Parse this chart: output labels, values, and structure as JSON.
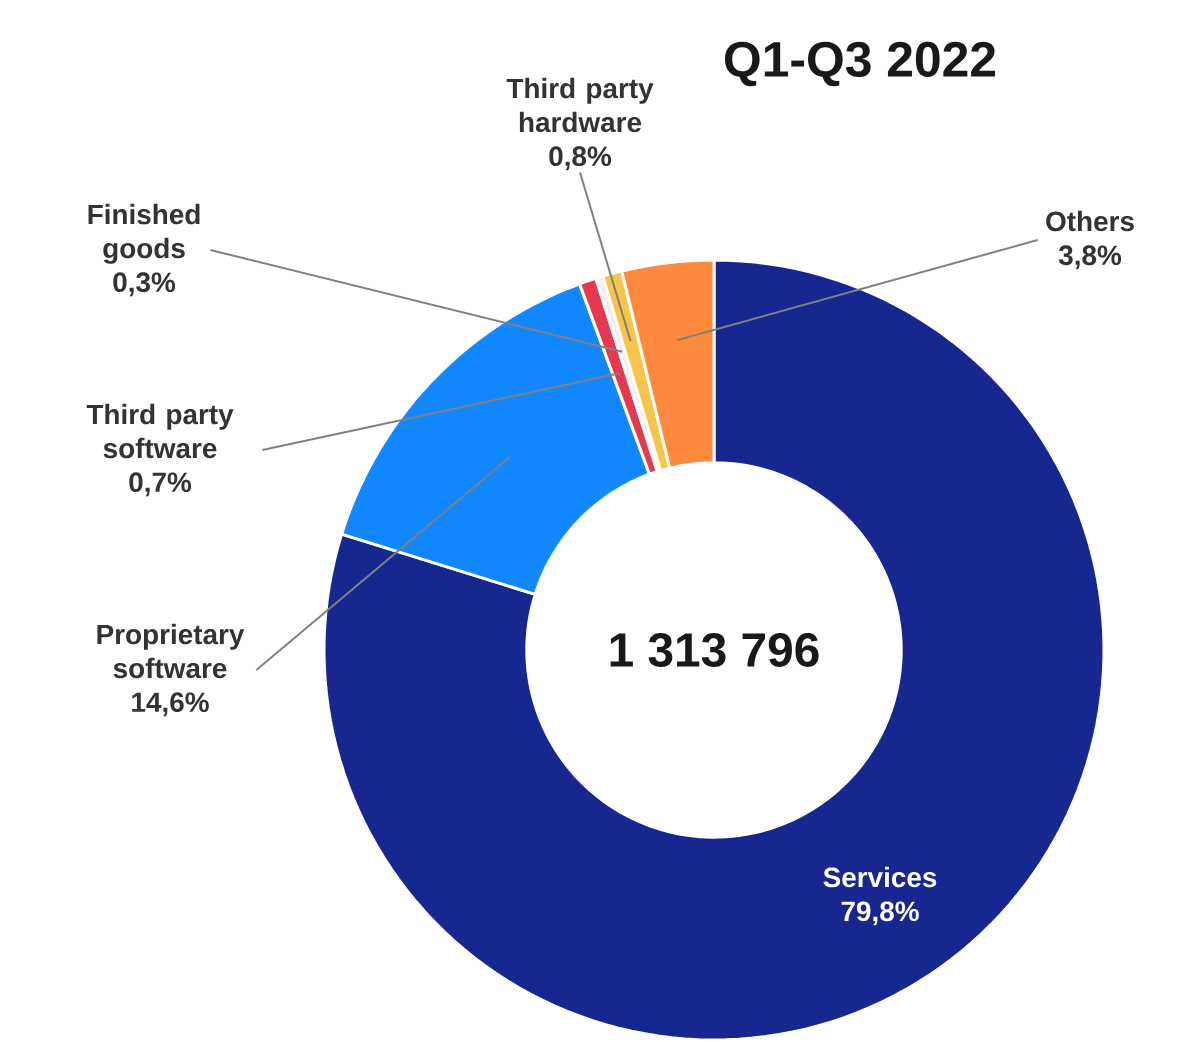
{
  "chart_data": {
    "type": "donut",
    "title": "Q1-Q3 2022",
    "categories": [
      "Services",
      "Proprietary software",
      "Third party software",
      "Finished goods",
      "Third party hardware",
      "Others"
    ],
    "values": [
      79.8,
      14.6,
      0.7,
      0.3,
      0.8,
      3.8
    ],
    "value_labels": [
      "79,8%",
      "14,6%",
      "0,7%",
      "0,3%",
      "0,8%",
      "3,8%"
    ],
    "colors": [
      "#16288f",
      "#1188ff",
      "#e8384f",
      "#f0eeee",
      "#f7c548",
      "#ff8a3d"
    ],
    "annotations": [
      "1 313 796"
    ]
  }
}
